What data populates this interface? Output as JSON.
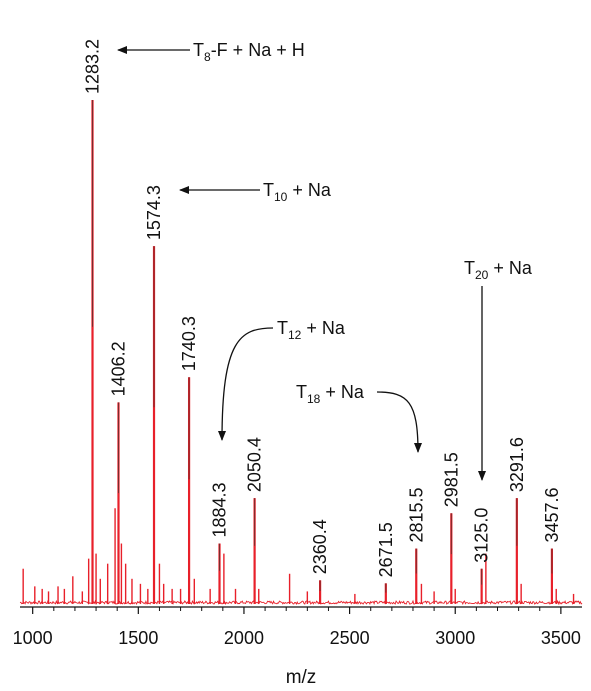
{
  "chart_data": {
    "type": "line",
    "title": "",
    "xlabel": "m/z",
    "ylabel": "",
    "xlim": [
      940,
      3600
    ],
    "ylim": [
      0,
      100
    ],
    "grid": false,
    "xticks": [
      1000,
      1500,
      2000,
      2500,
      3000,
      3500
    ],
    "xtick_labels": [
      "1000",
      "1500",
      "2000",
      "2500",
      "3000",
      "3500"
    ],
    "colors": {
      "spectrum": "#e8202a",
      "peak_core": "#7a2b2b",
      "axis": "#111111"
    },
    "peaks": [
      {
        "mz": 1283.2,
        "intensity": 100,
        "label": "1283.2"
      },
      {
        "mz": 1406.2,
        "intensity": 40,
        "label": "1406.2"
      },
      {
        "mz": 1574.3,
        "intensity": 71,
        "label": "1574.3"
      },
      {
        "mz": 1740.3,
        "intensity": 45,
        "label": "1740.3"
      },
      {
        "mz": 1884.3,
        "intensity": 12,
        "label": "1884.3"
      },
      {
        "mz": 2050.4,
        "intensity": 21,
        "label": "2050.4"
      },
      {
        "mz": 2360.4,
        "intensity": 4.7,
        "label": "2360.4"
      },
      {
        "mz": 2671.5,
        "intensity": 4.1,
        "label": "2671.5"
      },
      {
        "mz": 2815.5,
        "intensity": 11,
        "label": "2815.5"
      },
      {
        "mz": 2981.5,
        "intensity": 18,
        "label": "2981.5"
      },
      {
        "mz": 3125.0,
        "intensity": 7,
        "label": "3125.0"
      },
      {
        "mz": 3291.6,
        "intensity": 21,
        "label": "3291.6"
      },
      {
        "mz": 3457.6,
        "intensity": 11,
        "label": "3457.6"
      }
    ],
    "minor_peaks": [
      {
        "mz": 955,
        "intensity": 7
      },
      {
        "mz": 1010,
        "intensity": 3.5
      },
      {
        "mz": 1045,
        "intensity": 3
      },
      {
        "mz": 1075,
        "intensity": 2.5
      },
      {
        "mz": 1120,
        "intensity": 3.5
      },
      {
        "mz": 1150,
        "intensity": 3
      },
      {
        "mz": 1190,
        "intensity": 5.5
      },
      {
        "mz": 1235,
        "intensity": 2.5
      },
      {
        "mz": 1265,
        "intensity": 9
      },
      {
        "mz": 1300,
        "intensity": 10
      },
      {
        "mz": 1320,
        "intensity": 5
      },
      {
        "mz": 1355,
        "intensity": 8
      },
      {
        "mz": 1390,
        "intensity": 19
      },
      {
        "mz": 1420,
        "intensity": 12
      },
      {
        "mz": 1440,
        "intensity": 8
      },
      {
        "mz": 1470,
        "intensity": 5
      },
      {
        "mz": 1510,
        "intensity": 4
      },
      {
        "mz": 1545,
        "intensity": 3
      },
      {
        "mz": 1600,
        "intensity": 8
      },
      {
        "mz": 1620,
        "intensity": 4
      },
      {
        "mz": 1660,
        "intensity": 3
      },
      {
        "mz": 1700,
        "intensity": 3
      },
      {
        "mz": 1765,
        "intensity": 5
      },
      {
        "mz": 1840,
        "intensity": 3
      },
      {
        "mz": 1905,
        "intensity": 10
      },
      {
        "mz": 1960,
        "intensity": 3
      },
      {
        "mz": 2070,
        "intensity": 3
      },
      {
        "mz": 2216,
        "intensity": 6
      },
      {
        "mz": 2300,
        "intensity": 2.5
      },
      {
        "mz": 2525,
        "intensity": 2
      },
      {
        "mz": 2840,
        "intensity": 4
      },
      {
        "mz": 2900,
        "intensity": 2.5
      },
      {
        "mz": 3000,
        "intensity": 3
      },
      {
        "mz": 3145,
        "intensity": 10
      },
      {
        "mz": 3312,
        "intensity": 4
      },
      {
        "mz": 3478,
        "intensity": 3
      },
      {
        "mz": 3560,
        "intensity": 2
      }
    ],
    "annotations": [
      {
        "base": "T",
        "sub": "8",
        "suffix": "-F + Na + H",
        "points_to": "1283.2"
      },
      {
        "base": "T",
        "sub": "10",
        "suffix": " + Na",
        "points_to": "1574.3"
      },
      {
        "base": "T",
        "sub": "12",
        "suffix": " + Na",
        "points_to": "1884.3"
      },
      {
        "base": "T",
        "sub": "18",
        "suffix": " + Na",
        "points_to": "2815.5"
      },
      {
        "base": "T",
        "sub": "20",
        "suffix": " + Na",
        "points_to": "3125.0"
      }
    ]
  }
}
